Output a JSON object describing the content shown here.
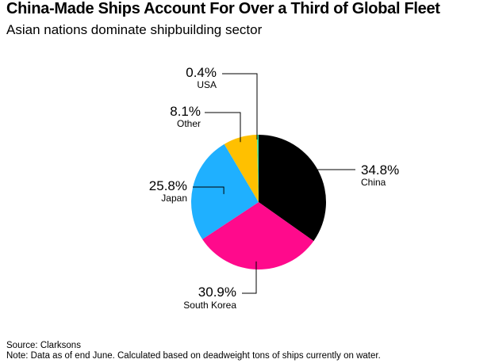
{
  "header": {
    "title": "China-Made Ships Account For Over a Third of Global Fleet",
    "subtitle": "Asian nations dominate shipbuilding sector"
  },
  "footer": {
    "source": "Source: Clarksons",
    "note": "Note: Data as of end June. Calculated based on deadweight tons of ships currently on water."
  },
  "chart_data": {
    "type": "pie",
    "title": "China-Made Ships Account For Over a Third of Global Fleet",
    "subtitle": "Asian nations dominate shipbuilding sector",
    "slices": [
      {
        "label": "China",
        "value": 34.8,
        "display": "34.8%",
        "color": "#000000"
      },
      {
        "label": "South Korea",
        "value": 30.9,
        "display": "30.9%",
        "color": "#ff0a8c"
      },
      {
        "label": "Japan",
        "value": 25.8,
        "display": "25.8%",
        "color": "#1fb0ff"
      },
      {
        "label": "Other",
        "value": 8.1,
        "display": "8.1%",
        "color": "#ffc000"
      },
      {
        "label": "USA",
        "value": 0.4,
        "display": "0.4%",
        "color": "#3de0a0"
      }
    ]
  }
}
